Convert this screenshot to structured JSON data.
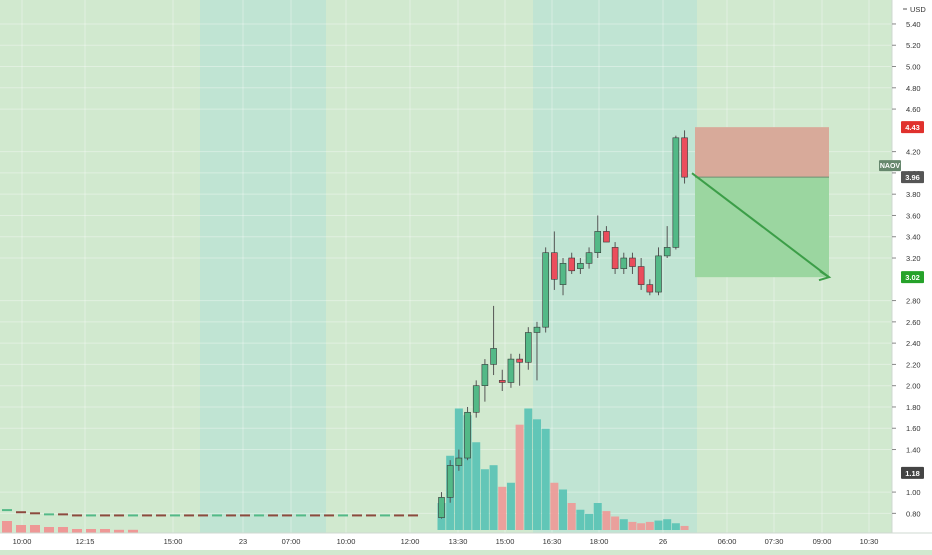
{
  "chart_data": {
    "type": "candlestick",
    "currency_label": "USD",
    "symbol_tag": "NAOV",
    "y_ticks": [
      "5.40",
      "5.20",
      "5.00",
      "4.80",
      "4.60",
      "4.20",
      "4.00",
      "3.80",
      "3.60",
      "3.40",
      "3.20",
      "2.80",
      "2.60",
      "2.40",
      "2.20",
      "2.00",
      "1.80",
      "1.60",
      "1.40",
      "1.00",
      "0.80"
    ],
    "y_tick_values": [
      5.4,
      5.2,
      5.0,
      4.8,
      4.6,
      4.2,
      4.0,
      3.8,
      3.6,
      3.4,
      3.2,
      2.8,
      2.6,
      2.4,
      2.2,
      2.0,
      1.8,
      1.6,
      1.4,
      1.0,
      0.8
    ],
    "x_ticks": [
      "10:00",
      "12:15",
      "15:00",
      "23",
      "07:00",
      "10:00",
      "12:00",
      "13:30",
      "15:00",
      "16:30",
      "18:00",
      "26",
      "06:00",
      "07:30",
      "09:00",
      "10:30"
    ],
    "ylim": [
      0.7,
      5.55
    ],
    "price_markers": {
      "stop": {
        "value": 4.43,
        "label": "4.43",
        "color": "#e0312d"
      },
      "current": {
        "value": 3.96,
        "label": "3.96",
        "color": "#555555"
      },
      "target": {
        "value": 3.02,
        "label": "3.02",
        "color": "#26a22a"
      },
      "low": {
        "value": 1.18,
        "label": "1.18",
        "color": "#444444"
      }
    },
    "session_bands": [
      {
        "from": 0,
        "to": 200,
        "color": "#d1e9cf"
      },
      {
        "from": 200,
        "to": 326,
        "color": "#c0e4d3"
      },
      {
        "from": 326,
        "to": 533,
        "color": "#d1e9cf"
      },
      {
        "from": 533,
        "to": 697,
        "color": "#c0e4d3"
      },
      {
        "from": 697,
        "to": 892,
        "color": "#d1e9cf"
      }
    ],
    "early_bars": [
      {
        "o": 0.84,
        "c": 0.83,
        "h": 0.85,
        "l": 0.82
      },
      {
        "o": 0.82,
        "c": 0.81,
        "h": 0.83,
        "l": 0.8
      },
      {
        "o": 0.81,
        "c": 0.8,
        "h": 0.82,
        "l": 0.8
      },
      {
        "o": 0.8,
        "c": 0.8,
        "h": 0.81,
        "l": 0.79
      },
      {
        "o": 0.8,
        "c": 0.79,
        "h": 0.8,
        "l": 0.78
      },
      {
        "o": 0.79,
        "c": 0.79,
        "h": 0.8,
        "l": 0.78
      },
      {
        "o": 0.79,
        "c": 0.78,
        "h": 0.79,
        "l": 0.77
      }
    ],
    "candles": [
      {
        "o": 0.76,
        "h": 1.0,
        "l": 0.75,
        "c": 0.95,
        "v": 0.2
      },
      {
        "o": 0.95,
        "h": 1.3,
        "l": 0.9,
        "c": 1.25,
        "v": 0.55
      },
      {
        "o": 1.25,
        "h": 1.4,
        "l": 1.2,
        "c": 1.32,
        "v": 0.9
      },
      {
        "o": 1.32,
        "h": 1.8,
        "l": 1.3,
        "c": 1.75,
        "v": 0.85
      },
      {
        "o": 1.75,
        "h": 2.05,
        "l": 1.7,
        "c": 2.0,
        "v": 0.65
      },
      {
        "o": 2.0,
        "h": 2.25,
        "l": 1.85,
        "c": 2.2,
        "v": 0.45
      },
      {
        "o": 2.2,
        "h": 2.75,
        "l": 2.1,
        "c": 2.35,
        "v": 0.48
      },
      {
        "o": 2.05,
        "h": 2.15,
        "l": 1.95,
        "c": 2.03,
        "v": 0.32
      },
      {
        "o": 2.03,
        "h": 2.3,
        "l": 1.98,
        "c": 2.25,
        "v": 0.35
      },
      {
        "o": 2.25,
        "h": 2.3,
        "l": 2.0,
        "c": 2.22,
        "v": 0.78
      },
      {
        "o": 2.22,
        "h": 2.55,
        "l": 2.15,
        "c": 2.5,
        "v": 0.9
      },
      {
        "o": 2.5,
        "h": 2.6,
        "l": 2.05,
        "c": 2.55,
        "v": 0.82
      },
      {
        "o": 2.55,
        "h": 3.3,
        "l": 2.5,
        "c": 3.25,
        "v": 0.75
      },
      {
        "o": 3.25,
        "h": 3.45,
        "l": 2.9,
        "c": 3.0,
        "v": 0.35
      },
      {
        "o": 2.95,
        "h": 3.2,
        "l": 2.85,
        "c": 3.15,
        "v": 0.3
      },
      {
        "o": 3.2,
        "h": 3.25,
        "l": 3.05,
        "c": 3.08,
        "v": 0.2
      },
      {
        "o": 3.1,
        "h": 3.2,
        "l": 3.05,
        "c": 3.15,
        "v": 0.15
      },
      {
        "o": 3.15,
        "h": 3.3,
        "l": 3.1,
        "c": 3.25,
        "v": 0.12
      },
      {
        "o": 3.25,
        "h": 3.6,
        "l": 3.2,
        "c": 3.45,
        "v": 0.2
      },
      {
        "o": 3.45,
        "h": 3.5,
        "l": 3.35,
        "c": 3.35,
        "v": 0.14
      },
      {
        "o": 3.3,
        "h": 3.35,
        "l": 3.05,
        "c": 3.1,
        "v": 0.1
      },
      {
        "o": 3.1,
        "h": 3.25,
        "l": 3.05,
        "c": 3.2,
        "v": 0.08
      },
      {
        "o": 3.2,
        "h": 3.25,
        "l": 3.05,
        "c": 3.12,
        "v": 0.06
      },
      {
        "o": 3.12,
        "h": 3.2,
        "l": 2.9,
        "c": 2.95,
        "v": 0.05
      },
      {
        "o": 2.95,
        "h": 3.0,
        "l": 2.85,
        "c": 2.88,
        "v": 0.06
      },
      {
        "o": 2.88,
        "h": 3.3,
        "l": 2.85,
        "c": 3.22,
        "v": 0.07
      },
      {
        "o": 3.22,
        "h": 3.5,
        "l": 3.2,
        "c": 3.3,
        "v": 0.08
      },
      {
        "o": 3.3,
        "h": 4.35,
        "l": 3.28,
        "c": 4.33,
        "v": 0.05
      },
      {
        "o": 4.33,
        "h": 4.4,
        "l": 3.9,
        "c": 3.96,
        "v": 0.03
      }
    ],
    "early_volume": [
      0.03,
      0.02,
      0.02,
      0.015,
      0.015,
      0.01,
      0.01,
      0.01,
      0.008,
      0.008
    ],
    "volume_scale": 0.2,
    "colors": {
      "up": "#53b987",
      "down": "#eb4d5c",
      "up_vol": "#56c2b4",
      "down_vol": "#ee9896",
      "wick": "#555555",
      "loss_zone": "#d8aa9a",
      "profit_zone": "#9bd6a0",
      "arrow": "#3c9e48"
    }
  }
}
